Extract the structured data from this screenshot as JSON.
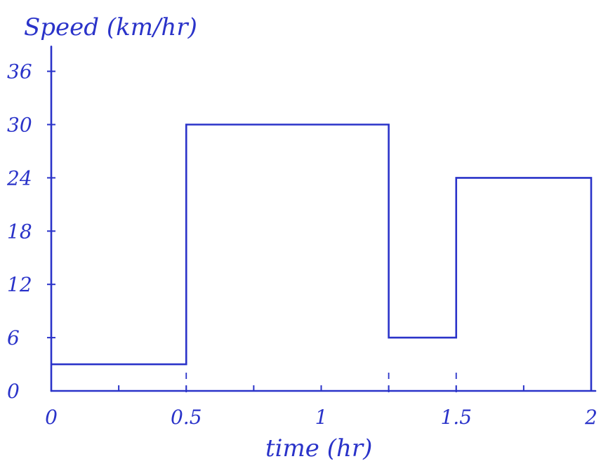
{
  "chart_data": {
    "type": "line",
    "step": true,
    "ylabel": "Speed (km/hr)",
    "xlabel": "time (hr)",
    "x_ticks": [
      {
        "value": 0,
        "label": "0"
      },
      {
        "value": 0.5,
        "label": "0.5"
      },
      {
        "value": 1,
        "label": "1"
      },
      {
        "value": 1.5,
        "label": "1.5"
      },
      {
        "value": 2,
        "label": "2"
      }
    ],
    "y_ticks": [
      {
        "value": 0,
        "label": "0"
      },
      {
        "value": 6,
        "label": "6"
      },
      {
        "value": 12,
        "label": "12"
      },
      {
        "value": 18,
        "label": "18"
      },
      {
        "value": 24,
        "label": "24"
      },
      {
        "value": 30,
        "label": "30"
      },
      {
        "value": 36,
        "label": "36"
      }
    ],
    "xlim": [
      0,
      2
    ],
    "ylim": [
      0,
      38
    ],
    "grid": false,
    "segments": [
      {
        "x_start": 0,
        "x_end": 0.5,
        "y": 3
      },
      {
        "x_start": 0.5,
        "x_end": 1.25,
        "y": 30
      },
      {
        "x_start": 1.25,
        "x_end": 1.5,
        "y": 6
      },
      {
        "x_start": 1.5,
        "x_end": 2,
        "y": 24
      }
    ],
    "dashed_guides_at_x": [
      0.5,
      1.25,
      1.5
    ],
    "color": "#2a33c9"
  }
}
